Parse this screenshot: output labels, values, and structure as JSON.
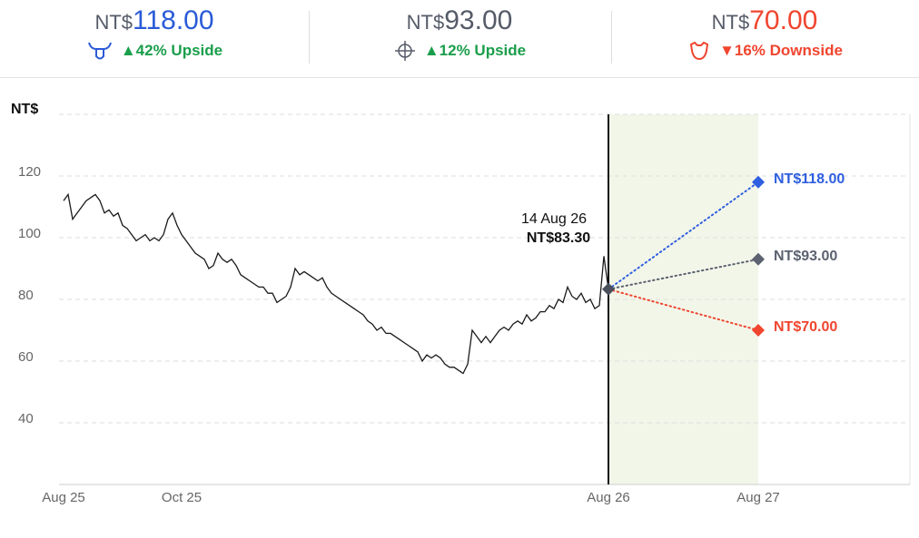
{
  "header": {
    "columns": [
      {
        "prefix": "NT$",
        "price": "118.00",
        "change": "▲42% Upside",
        "price_color": "#2a5bd7",
        "change_color": "#1a9e4b"
      },
      {
        "prefix": "NT$",
        "price": "93.00",
        "change": "▲12% Upside",
        "price_color": "#555b68",
        "change_color": "#1a9e4b"
      },
      {
        "prefix": "NT$",
        "price": "70.00",
        "change": "▼16% Downside",
        "price_color": "#f0452f",
        "change_color": "#f0452f"
      }
    ]
  },
  "chart_data": {
    "type": "line",
    "y_label": "NT$",
    "ylim": [
      20,
      140
    ],
    "yticks": [
      40,
      60,
      80,
      100,
      120
    ],
    "grid": true,
    "xlim": [
      -1,
      186
    ],
    "xticks": [
      {
        "value": 0,
        "label": "Aug 25"
      },
      {
        "value": 26,
        "label": "Oct 25"
      },
      {
        "value": 120,
        "label": "Aug 26"
      },
      {
        "value": 153,
        "label": "Aug 27"
      }
    ],
    "series": [
      {
        "color": "#1a1a1a",
        "values": [
          112,
          114,
          106,
          108,
          110,
          112,
          113,
          114,
          112,
          108,
          109,
          107,
          108,
          104,
          103,
          101,
          99,
          100,
          101,
          99,
          100,
          99,
          101,
          106,
          108,
          104,
          101,
          99,
          97,
          95,
          94,
          93,
          90,
          91,
          95,
          93,
          92,
          93,
          91,
          88,
          87,
          86,
          85,
          84,
          84,
          82,
          82,
          79,
          80,
          81,
          84,
          90,
          88,
          89,
          88,
          87,
          86,
          87,
          84,
          82,
          81,
          80,
          79,
          78,
          77,
          76,
          75,
          73,
          72,
          70,
          71,
          69,
          69,
          68,
          67,
          66,
          65,
          64,
          63,
          60,
          62,
          61,
          62,
          61,
          59,
          58,
          58,
          57,
          56,
          59,
          70,
          68,
          66,
          68,
          66,
          68,
          70,
          71,
          70,
          72,
          73,
          72,
          75,
          73,
          74,
          76,
          76,
          78,
          77,
          80,
          79,
          84,
          81,
          80,
          82,
          79,
          80,
          77,
          78,
          94,
          83.3
        ]
      }
    ],
    "annotation": {
      "date": "14 Aug 26",
      "value_label": "NT$83.30"
    },
    "targets": [
      {
        "value": 118,
        "label": "NT$118.00",
        "color": "#2f5fe0"
      },
      {
        "value": 93,
        "label": "NT$93.00",
        "color": "#5c6270"
      },
      {
        "value": 70,
        "label": "NT$70.00",
        "color": "#f0452f"
      }
    ]
  }
}
